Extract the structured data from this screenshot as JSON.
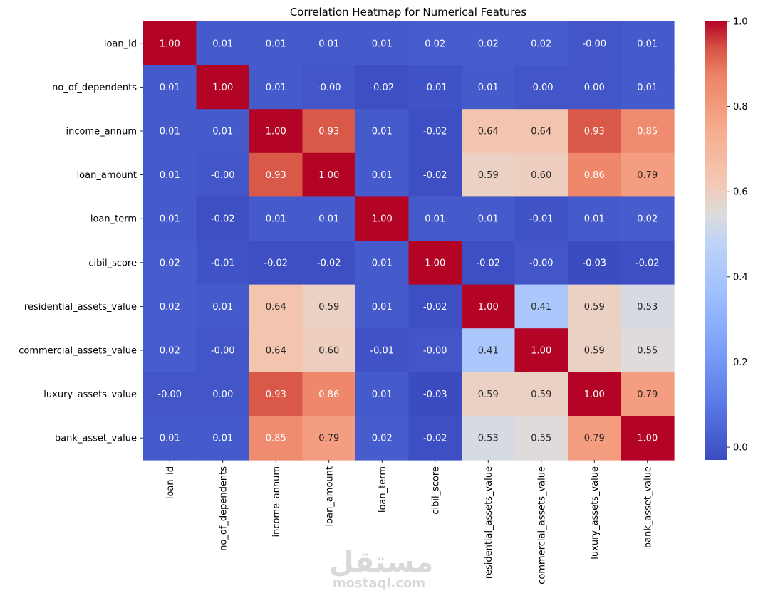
{
  "chart_data": {
    "type": "heatmap",
    "title": "Correlation Heatmap for Numerical Features",
    "colormap": "coolwarm",
    "rows": [
      "loan_id",
      "no_of_dependents",
      "income_annum",
      "loan_amount",
      "loan_term",
      "cibil_score",
      "residential_assets_value",
      "commercial_assets_value",
      "luxury_assets_value",
      "bank_asset_value"
    ],
    "columns": [
      "loan_id",
      "no_of_dependents",
      "income_annum",
      "loan_amount",
      "loan_term",
      "cibil_score",
      "residential_assets_value",
      "commercial_assets_value",
      "luxury_assets_value",
      "bank_asset_value"
    ],
    "values": [
      [
        1.0,
        0.01,
        0.01,
        0.01,
        0.01,
        0.02,
        0.02,
        0.02,
        -0.0,
        0.01
      ],
      [
        0.01,
        1.0,
        0.01,
        -0.0,
        -0.02,
        -0.01,
        0.01,
        -0.0,
        0.0,
        0.01
      ],
      [
        0.01,
        0.01,
        1.0,
        0.93,
        0.01,
        -0.02,
        0.64,
        0.64,
        0.93,
        0.85
      ],
      [
        0.01,
        -0.0,
        0.93,
        1.0,
        0.01,
        -0.02,
        0.59,
        0.6,
        0.86,
        0.79
      ],
      [
        0.01,
        -0.02,
        0.01,
        0.01,
        1.0,
        0.01,
        0.01,
        -0.01,
        0.01,
        0.02
      ],
      [
        0.02,
        -0.01,
        -0.02,
        -0.02,
        0.01,
        1.0,
        -0.02,
        -0.0,
        -0.03,
        -0.02
      ],
      [
        0.02,
        0.01,
        0.64,
        0.59,
        0.01,
        -0.02,
        1.0,
        0.41,
        0.59,
        0.53
      ],
      [
        0.02,
        -0.0,
        0.64,
        0.6,
        -0.01,
        -0.0,
        0.41,
        1.0,
        0.59,
        0.55
      ],
      [
        -0.0,
        0.0,
        0.93,
        0.86,
        0.01,
        -0.03,
        0.59,
        0.59,
        1.0,
        0.79
      ],
      [
        0.01,
        0.01,
        0.85,
        0.79,
        0.02,
        -0.02,
        0.53,
        0.55,
        0.79,
        1.0
      ]
    ],
    "value_labels": [
      [
        "1.00",
        "0.01",
        "0.01",
        "0.01",
        "0.01",
        "0.02",
        "0.02",
        "0.02",
        "-0.00",
        "0.01"
      ],
      [
        "0.01",
        "1.00",
        "0.01",
        "-0.00",
        "-0.02",
        "-0.01",
        "0.01",
        "-0.00",
        "0.00",
        "0.01"
      ],
      [
        "0.01",
        "0.01",
        "1.00",
        "0.93",
        "0.01",
        "-0.02",
        "0.64",
        "0.64",
        "0.93",
        "0.85"
      ],
      [
        "0.01",
        "-0.00",
        "0.93",
        "1.00",
        "0.01",
        "-0.02",
        "0.59",
        "0.60",
        "0.86",
        "0.79"
      ],
      [
        "0.01",
        "-0.02",
        "0.01",
        "0.01",
        "1.00",
        "0.01",
        "0.01",
        "-0.01",
        "0.01",
        "0.02"
      ],
      [
        "0.02",
        "-0.01",
        "-0.02",
        "-0.02",
        "0.01",
        "1.00",
        "-0.02",
        "-0.00",
        "-0.03",
        "-0.02"
      ],
      [
        "0.02",
        "0.01",
        "0.64",
        "0.59",
        "0.01",
        "-0.02",
        "1.00",
        "0.41",
        "0.59",
        "0.53"
      ],
      [
        "0.02",
        "-0.00",
        "0.64",
        "0.60",
        "-0.01",
        "-0.00",
        "0.41",
        "1.00",
        "0.59",
        "0.55"
      ],
      [
        "-0.00",
        "0.00",
        "0.93",
        "0.86",
        "0.01",
        "-0.03",
        "0.59",
        "0.59",
        "1.00",
        "0.79"
      ],
      [
        "0.01",
        "0.01",
        "0.85",
        "0.79",
        "0.02",
        "-0.02",
        "0.53",
        "0.55",
        "0.79",
        "1.00"
      ]
    ],
    "colorbar": {
      "range": [
        -0.03,
        1.0
      ],
      "ticks": [
        0.0,
        0.2,
        0.4,
        0.6,
        0.8,
        1.0
      ],
      "tick_labels": [
        "0.0",
        "0.2",
        "0.4",
        "0.6",
        "0.8",
        "1.0"
      ]
    }
  },
  "watermark": {
    "logo": "مستقل",
    "text": "mostaql.com"
  }
}
